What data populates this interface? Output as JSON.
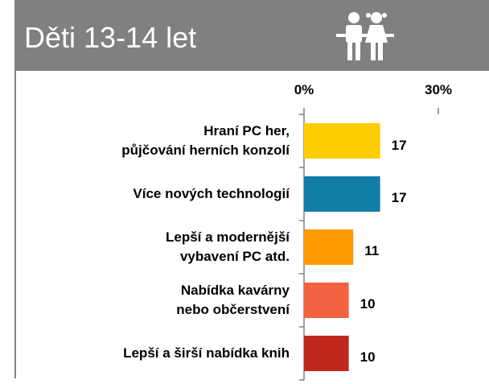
{
  "chart_data": {
    "type": "bar",
    "orientation": "horizontal",
    "title": "Děti 13-14 let",
    "categories": [
      "Hraní PC her,\npůjčování herních konzolí",
      "Více nových technologií",
      "Lepší a modernější\nvybavení PC atd.",
      "Nabídka kavárny\nnebo občerstvení",
      "Lepší a širší nabídka knih"
    ],
    "values": [
      17,
      17,
      11,
      10,
      10
    ],
    "colors": [
      "#ffcc00",
      "#0f7fa8",
      "#ff9900",
      "#f26240",
      "#c0281e"
    ],
    "xlim": [
      0,
      30
    ],
    "xticks": [
      {
        "value": 0,
        "label": "0%"
      },
      {
        "value": 30,
        "label": "30%"
      }
    ]
  }
}
